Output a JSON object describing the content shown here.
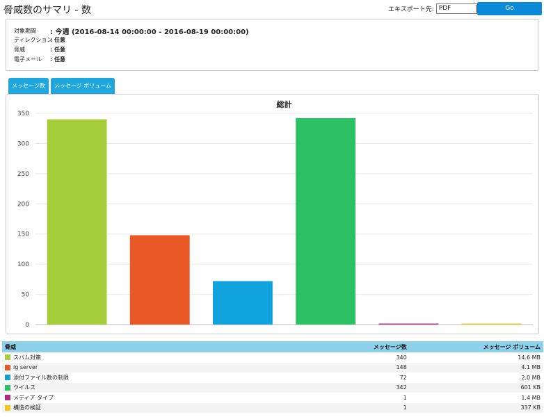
{
  "page_title": "脅威数のサマリ - 数",
  "export": {
    "label": "エキスポート先:",
    "selected": "PDF",
    "go_label": "Go"
  },
  "filters": [
    {
      "label": "対象期間",
      "value": ": 今週 (2016-08-14 00:00:00 - 2016-08-19 00:00:00)"
    },
    {
      "label": "ディレクション",
      "value": ": 任意"
    },
    {
      "label": "脅威",
      "value": ": 任意"
    },
    {
      "label": "電子メール",
      "value": ": 任意"
    }
  ],
  "tabs": [
    {
      "label": "メッセージ数"
    },
    {
      "label": "メッセージ ボリューム"
    }
  ],
  "chart_data": {
    "type": "bar",
    "title": "総計",
    "categories": [
      "スパム対策",
      "ig server",
      "添付ファイル数の制限",
      "ウイルス",
      "メディア タイプ",
      "構造の検証"
    ],
    "values": [
      340,
      148,
      72,
      342,
      1,
      1
    ],
    "colors": [
      "#a5cd39",
      "#e95825",
      "#0fa2dc",
      "#2cc064",
      "#b32a7b",
      "#f5c518"
    ],
    "ylim": [
      0,
      350
    ],
    "yticks": [
      0,
      50,
      100,
      150,
      200,
      250,
      300,
      350
    ],
    "grid": true
  },
  "table": {
    "headers": {
      "name": "脅威",
      "count": "メッセージ数",
      "volume": "メッセージ ボリューム"
    },
    "rows": [
      {
        "name": "スパム対策",
        "count": "340",
        "volume": "14.6 MB",
        "color": "#a5cd39"
      },
      {
        "name": "ig server",
        "count": "148",
        "volume": "4.1 MB",
        "color": "#e95825"
      },
      {
        "name": "添付ファイル数の制限",
        "count": "72",
        "volume": "2.0 MB",
        "color": "#0fa2dc"
      },
      {
        "name": "ウイルス",
        "count": "342",
        "volume": "601 KB",
        "color": "#2cc064"
      },
      {
        "name": "メディア タイプ",
        "count": "1",
        "volume": "1.4 MB",
        "color": "#b32a7b"
      },
      {
        "name": "構造の検証",
        "count": "1",
        "volume": "337 KB",
        "color": "#f5c518"
      }
    ]
  }
}
